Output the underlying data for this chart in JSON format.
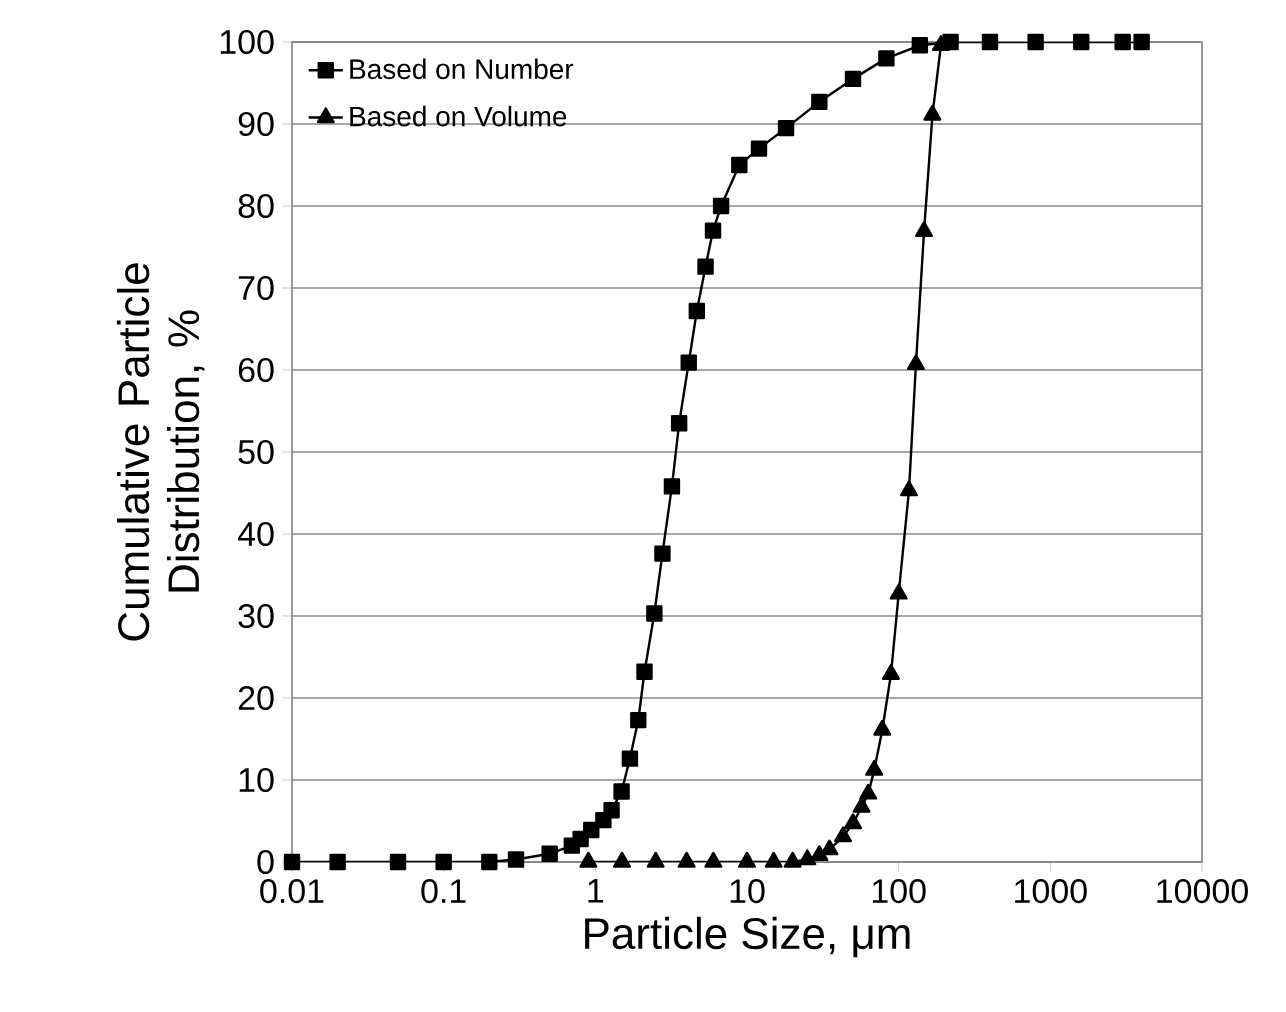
{
  "chart_data": {
    "type": "line",
    "xlabel": "Particle Size,  μm",
    "ylabel": "Cumulative Particle Distribution, %",
    "log": "x",
    "xlim": [
      0.01,
      10000
    ],
    "xticks": [
      0.01,
      0.1,
      1,
      10,
      100,
      1000,
      10000
    ],
    "ylim": [
      0,
      100
    ],
    "yticks": [
      0,
      10,
      20,
      30,
      40,
      50,
      60,
      70,
      80,
      90,
      100
    ],
    "grid": "y",
    "legend": "top left",
    "line_style": "solid",
    "series": [
      {
        "name": "Based on Number",
        "color": "#000000",
        "marker": "square",
        "x": [
          0.01,
          0.02,
          0.05,
          0.1,
          0.2,
          0.3,
          0.5,
          0.7,
          0.8,
          0.94,
          1.13,
          1.28,
          1.49,
          1.69,
          1.92,
          2.11,
          2.45,
          2.77,
          3.2,
          3.57,
          4.13,
          4.67,
          5.33,
          5.97,
          6.75,
          8.9,
          12,
          18.1,
          30,
          50,
          83,
          138,
          220,
          400,
          800,
          1600,
          3000,
          4000
        ],
        "values": [
          0,
          0,
          0,
          0,
          0,
          0.3,
          1,
          2,
          2.8,
          3.9,
          5.1,
          6.3,
          8.6,
          12.6,
          17.3,
          23.2,
          30.3,
          37.6,
          45.8,
          53.5,
          60.9,
          67.2,
          72.6,
          77,
          80,
          85,
          87,
          89.5,
          92.7,
          95.5,
          98,
          99.6,
          100,
          100,
          100,
          100,
          100,
          100
        ]
      },
      {
        "name": "Based on Volume",
        "color": "#000000",
        "marker": "triangle",
        "x": [
          0.9,
          1.5,
          2.5,
          4,
          6,
          10,
          15,
          20,
          25,
          30,
          35,
          43,
          50,
          57,
          63,
          69,
          78,
          89,
          100,
          117,
          130,
          147,
          167,
          190
        ],
        "values": [
          0,
          0,
          0,
          0,
          0,
          0,
          0,
          0,
          0.3,
          0.8,
          1.5,
          3.1,
          4.7,
          6.7,
          8.3,
          11.2,
          16.1,
          22.9,
          32.7,
          45.3,
          60.7,
          76.9,
          91.1,
          99.6
        ]
      }
    ]
  }
}
